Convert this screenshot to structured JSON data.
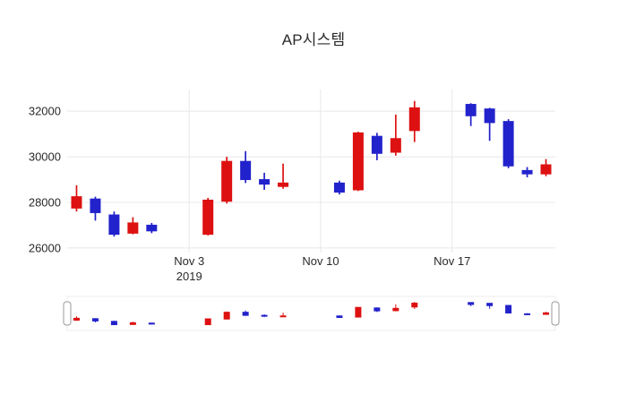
{
  "chart_data": {
    "type": "candlestick",
    "title": "AP시스템",
    "xlabel": "",
    "ylabel": "",
    "y_ticks": [
      26000,
      28000,
      30000,
      32000
    ],
    "y_tick_labels": [
      "26000",
      "28000",
      "30000",
      "32000"
    ],
    "y_range": [
      25800,
      32950
    ],
    "x_ticks": [
      {
        "label": "Nov 3",
        "sublabel": "2019",
        "date": "2019-11-03"
      },
      {
        "label": "Nov 10",
        "sublabel": "",
        "date": "2019-11-10"
      },
      {
        "label": "Nov 17",
        "sublabel": "",
        "date": "2019-11-17"
      }
    ],
    "legend": "none",
    "grid": "on",
    "rangeslider": true,
    "colors": {
      "increasing": "#dd1111",
      "decreasing": "#2222cc",
      "grid": "#e8e8e8",
      "text": "#2a2a2a",
      "background": "#ffffff",
      "slider_border": "#ececec",
      "slider_handle_border": "#999999"
    },
    "dates": [
      "2019-10-28",
      "2019-10-29",
      "2019-10-30",
      "2019-10-31",
      "2019-11-01",
      "2019-11-04",
      "2019-11-05",
      "2019-11-06",
      "2019-11-07",
      "2019-11-08",
      "2019-11-11",
      "2019-11-12",
      "2019-11-13",
      "2019-11-14",
      "2019-11-15",
      "2019-11-18",
      "2019-11-19",
      "2019-11-20",
      "2019-11-21",
      "2019-11-22"
    ],
    "open": [
      27750,
      28150,
      27450,
      26650,
      27000,
      26600,
      28050,
      29800,
      29000,
      28700,
      28850,
      28550,
      30900,
      30200,
      31150,
      32300,
      32100,
      31550,
      29400,
      29250
    ],
    "high": [
      28750,
      28250,
      27600,
      27350,
      27100,
      28200,
      30000,
      30250,
      29300,
      29700,
      28950,
      31100,
      31050,
      31850,
      32450,
      32350,
      32150,
      31650,
      29550,
      29900
    ],
    "low": [
      27600,
      27200,
      26500,
      26600,
      26650,
      26550,
      27950,
      28850,
      28550,
      28600,
      28350,
      28500,
      29850,
      30050,
      30650,
      31350,
      30700,
      29500,
      29100,
      29150
    ],
    "close": [
      28250,
      27550,
      26600,
      27100,
      26750,
      28100,
      29800,
      29000,
      28800,
      28850,
      28450,
      31050,
      30150,
      30800,
      32150,
      31800,
      31500,
      29600,
      29250,
      29650
    ]
  }
}
